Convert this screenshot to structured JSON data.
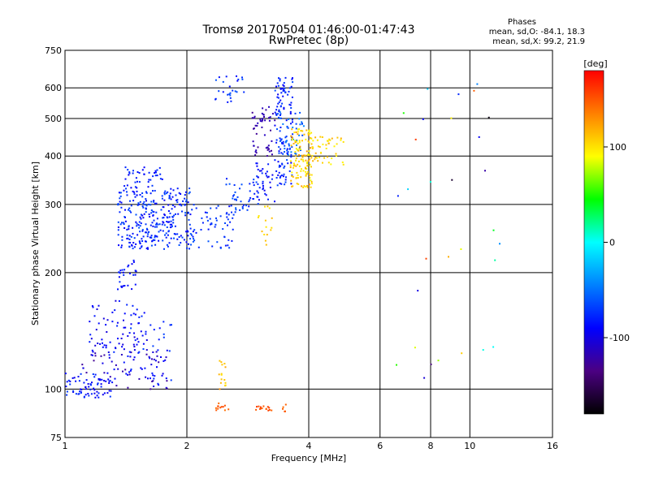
{
  "chart_data": {
    "type": "scatter",
    "title": "Tromsø 20170504 01:46:00-01:47:43",
    "subtitle": "RwPretec (8p)",
    "xlabel": "Frequency [MHz]",
    "ylabel": "Stationary phase Virtual Height [km]",
    "x_scale": "log",
    "y_scale": "log",
    "xlim": [
      1,
      16
    ],
    "ylim": [
      75,
      750
    ],
    "x_ticks": [
      1,
      2,
      4,
      6,
      8,
      10,
      16
    ],
    "x_tick_labels": [
      "1",
      "2",
      "4",
      "6",
      "8",
      "10",
      "16"
    ],
    "y_ticks": [
      75,
      100,
      200,
      300,
      400,
      500,
      600,
      750
    ],
    "y_tick_labels": [
      "75",
      "100",
      "200",
      "300",
      "400",
      "500",
      "600",
      "750"
    ],
    "grid": true,
    "stats": {
      "heading": "Phases",
      "line_o": "mean, sd,O: -84.1, 18.3",
      "line_x": "mean, sd,X:  99.2, 21.9"
    },
    "colorbar": {
      "label": "[deg]",
      "range": [
        -180,
        180
      ],
      "ticks": [
        100,
        0,
        -100
      ],
      "tick_labels": [
        "100",
        "0",
        "-100"
      ],
      "colors": [
        "#000000",
        "#4b0082",
        "#0000ff",
        "#0080ff",
        "#00ffff",
        "#00ff00",
        "#ffff00",
        "#ff8000",
        "#ff0000"
      ]
    },
    "clusters": [
      {
        "f_range": [
          1.0,
          1.3
        ],
        "h_range": [
          95,
          110
        ],
        "phase": [
          -100,
          -70
        ],
        "n": 70
      },
      {
        "f_range": [
          1.1,
          1.8
        ],
        "h_range": [
          100,
          125
        ],
        "phase": [
          -130,
          -80
        ],
        "n": 70
      },
      {
        "f_range": [
          1.15,
          1.6
        ],
        "h_range": [
          120,
          170
        ],
        "phase": [
          -105,
          -75
        ],
        "n": 80
      },
      {
        "f_range": [
          1.45,
          1.85
        ],
        "h_range": [
          105,
          150
        ],
        "phase": [
          -100,
          -65
        ],
        "n": 30
      },
      {
        "f_range": [
          1.35,
          1.5
        ],
        "h_range": [
          180,
          215
        ],
        "phase": [
          -95,
          -75
        ],
        "n": 30
      },
      {
        "f_range": [
          1.35,
          2.05
        ],
        "h_range": [
          230,
          330
        ],
        "phase": [
          -95,
          -60
        ],
        "n": 300
      },
      {
        "f_range": [
          1.4,
          1.75
        ],
        "h_range": [
          330,
          375
        ],
        "phase": [
          -95,
          -70
        ],
        "n": 40
      },
      {
        "f_range": [
          2.0,
          2.6
        ],
        "h_range": [
          230,
          300
        ],
        "phase": [
          -90,
          -60
        ],
        "n": 60
      },
      {
        "f_range": [
          2.5,
          3.0
        ],
        "h_range": [
          280,
          350
        ],
        "phase": [
          -85,
          -55
        ],
        "n": 40
      },
      {
        "f_range": [
          2.35,
          2.8
        ],
        "h_range": [
          550,
          660
        ],
        "phase": [
          -90,
          -60
        ],
        "n": 25
      },
      {
        "f_range": [
          2.9,
          3.3
        ],
        "h_range": [
          400,
          540
        ],
        "phase": [
          -130,
          -110
        ],
        "n": 50
      },
      {
        "f_range": [
          2.9,
          3.3
        ],
        "h_range": [
          300,
          400
        ],
        "phase": [
          -100,
          -70
        ],
        "n": 40
      },
      {
        "f_range": [
          3.3,
          3.65
        ],
        "h_range": [
          330,
          640
        ],
        "phase": [
          -95,
          -60
        ],
        "n": 130
      },
      {
        "f_range": [
          3.35,
          3.9
        ],
        "h_range": [
          400,
          520
        ],
        "phase": [
          -70,
          -40
        ],
        "n": 40
      },
      {
        "f_range": [
          3.6,
          4.1
        ],
        "h_range": [
          330,
          470
        ],
        "phase": [
          85,
          130
        ],
        "n": 130
      },
      {
        "f_range": [
          4.1,
          4.9
        ],
        "h_range": [
          380,
          450
        ],
        "phase": [
          90,
          120
        ],
        "n": 40
      },
      {
        "f_range": [
          3.0,
          3.25
        ],
        "h_range": [
          235,
          300
        ],
        "phase": [
          95,
          115
        ],
        "n": 15
      },
      {
        "f_range": [
          2.4,
          2.5
        ],
        "h_range": [
          100,
          120
        ],
        "phase": [
          100,
          130
        ],
        "n": 15
      },
      {
        "f_range": [
          2.35,
          2.55
        ],
        "h_range": [
          88,
          92
        ],
        "phase": [
          140,
          155
        ],
        "n": 12
      },
      {
        "f_range": [
          2.95,
          3.25
        ],
        "h_range": [
          88,
          91
        ],
        "phase": [
          140,
          160
        ],
        "n": 15
      },
      {
        "f_range": [
          3.45,
          3.55
        ],
        "h_range": [
          87,
          92
        ],
        "phase": [
          140,
          155
        ],
        "n": 6
      },
      {
        "f_range": [
          6.2,
          12.0
        ],
        "h_range": [
          100,
          620
        ],
        "phase": [
          -180,
          180
        ],
        "n": 30
      }
    ]
  }
}
